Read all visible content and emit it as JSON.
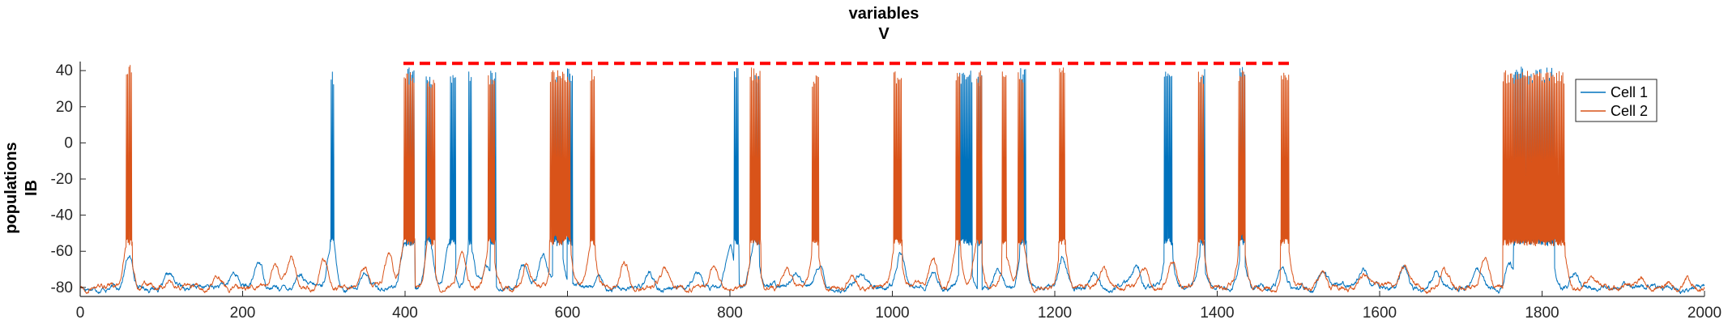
{
  "chart_data": {
    "type": "line",
    "title_lines": [
      "variables",
      "V"
    ],
    "ylabel_lines": [
      "populations",
      "IB"
    ],
    "xlim": [
      0,
      2000
    ],
    "ylim": [
      -85,
      45
    ],
    "x_ticks": [
      0,
      200,
      400,
      600,
      800,
      1000,
      1200,
      1400,
      1600,
      1800,
      2000
    ],
    "x_tick_labels": [
      "0",
      "200",
      "400",
      "600",
      "800",
      "1000",
      "1200",
      "1400",
      "1600",
      "1800",
      "2000"
    ],
    "y_ticks": [
      40,
      20,
      0,
      -20,
      -40,
      -60,
      -80
    ],
    "y_tick_labels": [
      "40",
      "20",
      "0",
      "-20",
      "-40",
      "-60",
      "-80"
    ],
    "grid": false,
    "legend_position": "top-right",
    "baseline_mV": -80,
    "series": [
      {
        "name": "Cell 1",
        "color": "#0072BD",
        "bumps": [
          [
            60,
            -63
          ],
          [
            110,
            -74
          ],
          [
            190,
            -72
          ],
          [
            220,
            -66
          ],
          [
            270,
            -72
          ],
          [
            310,
            -54
          ],
          [
            350,
            -72
          ],
          [
            400,
            -56
          ],
          [
            430,
            -56
          ],
          [
            455,
            -58
          ],
          [
            480,
            -58
          ],
          [
            500,
            -70
          ],
          [
            545,
            -66
          ],
          [
            570,
            -62
          ],
          [
            590,
            -55
          ],
          [
            640,
            -74
          ],
          [
            700,
            -72
          ],
          [
            760,
            -73
          ],
          [
            800,
            -58
          ],
          [
            830,
            -57
          ],
          [
            880,
            -72
          ],
          [
            910,
            -68
          ],
          [
            960,
            -72
          ],
          [
            1010,
            -60
          ],
          [
            1050,
            -70
          ],
          [
            1090,
            -55
          ],
          [
            1130,
            -70
          ],
          [
            1160,
            -57
          ],
          [
            1210,
            -64
          ],
          [
            1250,
            -74
          ],
          [
            1300,
            -69
          ],
          [
            1340,
            -55
          ],
          [
            1380,
            -62
          ],
          [
            1430,
            -62
          ],
          [
            1480,
            -70
          ],
          [
            1530,
            -72
          ],
          [
            1580,
            -69
          ],
          [
            1630,
            -68
          ],
          [
            1670,
            -70
          ],
          [
            1720,
            -68
          ],
          [
            1760,
            -65
          ],
          [
            1790,
            -56
          ],
          [
            1810,
            -58
          ],
          [
            1840,
            -72
          ],
          [
            1900,
            -78
          ],
          [
            1960,
            -79
          ]
        ],
        "bursts": [
          [
            308,
            312,
            40
          ],
          [
            402,
            412,
            42
          ],
          [
            425,
            432,
            38
          ],
          [
            455,
            462,
            40
          ],
          [
            478,
            482,
            42
          ],
          [
            505,
            512,
            40
          ],
          [
            582,
            594,
            40
          ],
          [
            600,
            606,
            42
          ],
          [
            805,
            811,
            44
          ],
          [
            830,
            836,
            40
          ],
          [
            1082,
            1098,
            40
          ],
          [
            1105,
            1110,
            38
          ],
          [
            1157,
            1165,
            42
          ],
          [
            1335,
            1345,
            40
          ],
          [
            1379,
            1385,
            42
          ],
          [
            1428,
            1434,
            42
          ],
          [
            1765,
            1815,
            42
          ]
        ]
      },
      {
        "name": "Cell 2",
        "color": "#D95319",
        "bumps": [
          [
            58,
            -54
          ],
          [
            110,
            -76
          ],
          [
            170,
            -73
          ],
          [
            240,
            -68
          ],
          [
            260,
            -64
          ],
          [
            300,
            -66
          ],
          [
            350,
            -70
          ],
          [
            380,
            -64
          ],
          [
            400,
            -52
          ],
          [
            430,
            -53
          ],
          [
            470,
            -62
          ],
          [
            505,
            -52
          ],
          [
            550,
            -66
          ],
          [
            585,
            -53
          ],
          [
            600,
            -53
          ],
          [
            630,
            -54
          ],
          [
            670,
            -66
          ],
          [
            720,
            -70
          ],
          [
            780,
            -68
          ],
          [
            830,
            -52
          ],
          [
            870,
            -70
          ],
          [
            905,
            -56
          ],
          [
            950,
            -71
          ],
          [
            1005,
            -54
          ],
          [
            1050,
            -64
          ],
          [
            1080,
            -55
          ],
          [
            1105,
            -54
          ],
          [
            1140,
            -64
          ],
          [
            1160,
            -54
          ],
          [
            1210,
            -54
          ],
          [
            1260,
            -70
          ],
          [
            1310,
            -69
          ],
          [
            1345,
            -66
          ],
          [
            1380,
            -52
          ],
          [
            1430,
            -52
          ],
          [
            1485,
            -53
          ],
          [
            1530,
            -70
          ],
          [
            1580,
            -72
          ],
          [
            1630,
            -68
          ],
          [
            1680,
            -71
          ],
          [
            1730,
            -63
          ],
          [
            1770,
            -55
          ],
          [
            1800,
            -55
          ],
          [
            1825,
            -56
          ],
          [
            1860,
            -74
          ],
          [
            1920,
            -76
          ],
          [
            1980,
            -75
          ]
        ],
        "bursts": [
          [
            57,
            64,
            44
          ],
          [
            398,
            412,
            40
          ],
          [
            427,
            437,
            38
          ],
          [
            502,
            510,
            40
          ],
          [
            578,
            604,
            40
          ],
          [
            628,
            634,
            42
          ],
          [
            825,
            838,
            42
          ],
          [
            901,
            909,
            38
          ],
          [
            1002,
            1012,
            40
          ],
          [
            1078,
            1084,
            40
          ],
          [
            1104,
            1110,
            40
          ],
          [
            1135,
            1140,
            42
          ],
          [
            1155,
            1162,
            40
          ],
          [
            1205,
            1213,
            42
          ],
          [
            1376,
            1384,
            40
          ],
          [
            1426,
            1434,
            40
          ],
          [
            1478,
            1488,
            42
          ],
          [
            1752,
            1828,
            40
          ]
        ]
      }
    ],
    "overlay": {
      "style": "dashed",
      "color": "#FF0000",
      "y": 44,
      "segments": [
        [
          398,
          1490
        ]
      ]
    }
  }
}
